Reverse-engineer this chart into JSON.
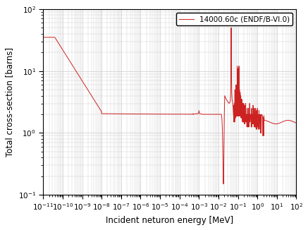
{
  "xlabel": "Incident neturon energy [MeV]",
  "ylabel": "Total cross-section [barns]",
  "xlim": [
    1e-11,
    100.0
  ],
  "ylim": [
    0.1,
    100
  ],
  "line_color": "#cc2222",
  "line_width": 0.7,
  "legend_label": "14000.60c (ENDF/B-VI.0)",
  "background_color": "#ffffff",
  "grid_color": "#cccccc",
  "legend_fontsize": 7.5,
  "axis_fontsize": 8.5,
  "tick_fontsize": 7.5
}
